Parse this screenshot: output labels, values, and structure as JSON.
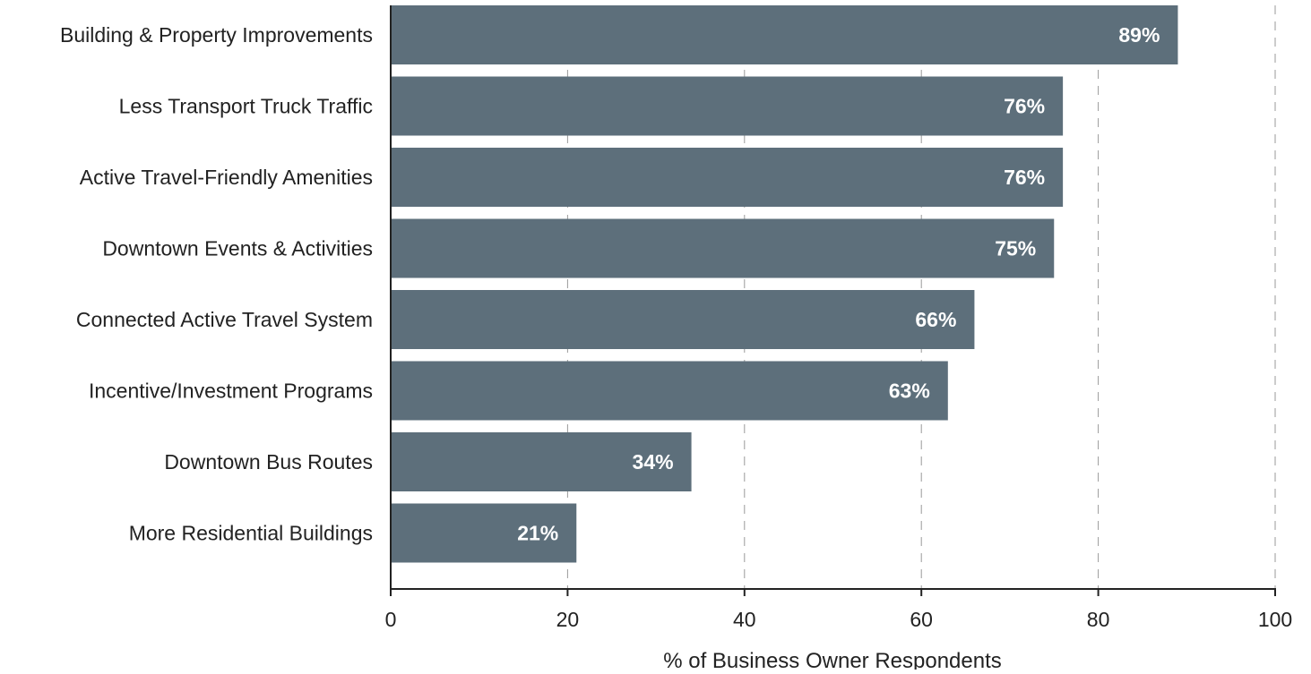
{
  "chart_data": {
    "type": "bar",
    "orientation": "horizontal",
    "categories": [
      "Building & Property Improvements",
      "Less Transport Truck Traffic",
      "Active Travel-Friendly Amenities",
      "Downtown Events & Activities",
      "Connected Active Travel System",
      "Incentive/Investment Programs",
      "Downtown Bus Routes",
      "More Residential Buildings"
    ],
    "values": [
      89,
      76,
      76,
      75,
      66,
      63,
      34,
      21
    ],
    "data_labels": [
      "89%",
      "76%",
      "76%",
      "75%",
      "66%",
      "63%",
      "34%",
      "21%"
    ],
    "title": "",
    "xlabel": "% of Business Owner Respondents",
    "ylabel": "",
    "xlim": [
      0,
      100
    ],
    "xticks": [
      0,
      20,
      40,
      60,
      80,
      100
    ],
    "xtick_labels": [
      "0",
      "20",
      "40",
      "60",
      "80",
      "100"
    ],
    "grid": "vertical dashed",
    "legend": "none",
    "bar_color": "#5d6f7b",
    "label_color": "#ffffff",
    "text_color": "#222222",
    "grid_color": "#9a9a9a"
  }
}
